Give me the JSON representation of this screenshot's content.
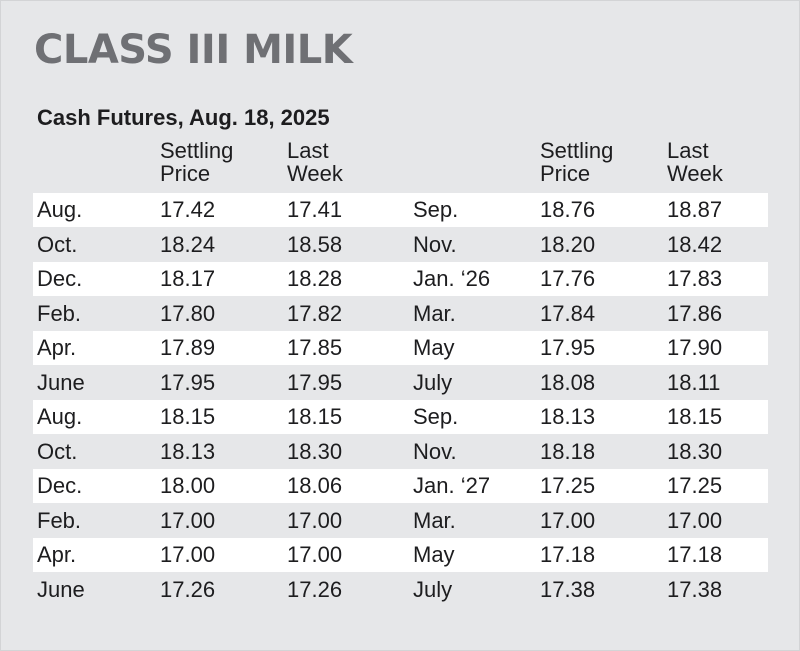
{
  "title": "CLASS III MILK",
  "subtitle": "Cash Futures, Aug. 18, 2025",
  "headers": {
    "settling_price": "Settling\nPrice",
    "last_week": "Last\nWeek"
  },
  "rows": [
    {
      "m1": "Aug.",
      "s1": "17.42",
      "l1": "17.41",
      "m2": "Sep.",
      "s2": "18.76",
      "l2": "18.87"
    },
    {
      "m1": "Oct.",
      "s1": "18.24",
      "l1": "18.58",
      "m2": "Nov.",
      "s2": "18.20",
      "l2": "18.42"
    },
    {
      "m1": "Dec.",
      "s1": "18.17",
      "l1": "18.28",
      "m2": "Jan. ‘26",
      "s2": "17.76",
      "l2": "17.83"
    },
    {
      "m1": "Feb.",
      "s1": "17.80",
      "l1": "17.82",
      "m2": "Mar.",
      "s2": "17.84",
      "l2": "17.86"
    },
    {
      "m1": "Apr.",
      "s1": "17.89",
      "l1": "17.85",
      "m2": "May",
      "s2": "17.95",
      "l2": "17.90"
    },
    {
      "m1": "June",
      "s1": "17.95",
      "l1": "17.95",
      "m2": "July",
      "s2": "18.08",
      "l2": "18.11"
    },
    {
      "m1": "Aug.",
      "s1": "18.15",
      "l1": "18.15",
      "m2": "Sep.",
      "s2": "18.13",
      "l2": "18.15"
    },
    {
      "m1": "Oct.",
      "s1": "18.13",
      "l1": "18.30",
      "m2": "Nov.",
      "s2": "18.18",
      "l2": "18.30"
    },
    {
      "m1": "Dec.",
      "s1": "18.00",
      "l1": "18.06",
      "m2": "Jan. ‘27",
      "s2": "17.25",
      "l2": "17.25"
    },
    {
      "m1": "Feb.",
      "s1": "17.00",
      "l1": "17.00",
      "m2": "Mar.",
      "s2": "17.00",
      "l2": "17.00"
    },
    {
      "m1": "Apr.",
      "s1": "17.00",
      "l1": "17.00",
      "m2": "May",
      "s2": "17.18",
      "l2": "17.18"
    },
    {
      "m1": "June",
      "s1": "17.26",
      "l1": "17.26",
      "m2": "July",
      "s2": "17.38",
      "l2": "17.38"
    }
  ],
  "colors": {
    "background": "#e6e7e9",
    "title": "#6f7074",
    "row_shade": "#ffffff",
    "text": "#1d1d1f"
  }
}
